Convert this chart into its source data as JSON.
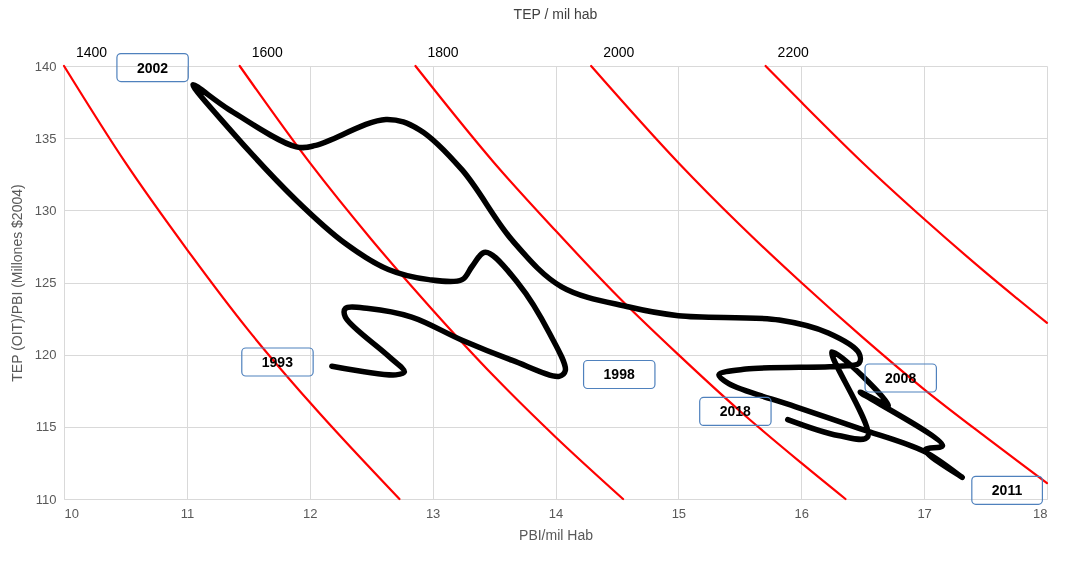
{
  "chart_data": {
    "type": "line",
    "title": "TEP  / mil hab",
    "xlabel": "PBI/mil Hab",
    "ylabel": "TEP (OIT)/PBI (Millones $2004)",
    "xlim": [
      10,
      18
    ],
    "xticks": [
      10,
      11,
      12,
      13,
      14,
      15,
      16,
      17,
      18
    ],
    "ylim": [
      110,
      140
    ],
    "yticks": [
      110,
      115,
      120,
      125,
      130,
      135,
      140
    ],
    "grid": true,
    "legend": false,
    "marker": "none",
    "series": [
      {
        "name": "1400",
        "color": "#ff0000",
        "x": [
          10,
          10.5,
          11,
          11.5,
          12,
          12.73
        ],
        "values": [
          140,
          133.3,
          127.3,
          121.7,
          116.7,
          110
        ]
      },
      {
        "name": "1600",
        "color": "#ff0000",
        "x": [
          11.43,
          12,
          12.5,
          13,
          13.5,
          14,
          14.55
        ],
        "values": [
          140,
          133.3,
          128,
          123.1,
          118.5,
          114.3,
          110
        ]
      },
      {
        "name": "1800",
        "color": "#ff0000",
        "x": [
          12.86,
          13.5,
          14,
          14.5,
          15,
          15.5,
          16,
          16.36
        ],
        "values": [
          140,
          133.3,
          128.6,
          124.1,
          120,
          116.1,
          112.5,
          110
        ]
      },
      {
        "name": "2000",
        "color": "#ff0000",
        "x": [
          14.29,
          15,
          15.5,
          16,
          16.5,
          17,
          17.5,
          18
        ],
        "values": [
          140,
          133.3,
          129,
          125,
          121.2,
          117.6,
          114.3,
          111.1
        ]
      },
      {
        "name": "2200",
        "color": "#ff0000",
        "x": [
          15.71,
          16,
          16.5,
          17,
          17.5,
          18
        ],
        "values": [
          140,
          137.5,
          133.3,
          129.4,
          125.7,
          122.2
        ]
      },
      {
        "color": "#000000",
        "x": [
          12.18,
          12.7,
          12.77,
          12.64,
          12.29,
          12.29,
          12.48,
          12.83,
          13.24,
          13.65,
          14.03,
          14.08,
          13.95,
          13.7,
          13.43,
          13.32,
          13.24,
          12.97,
          12.64,
          12.29,
          11.89,
          11.34,
          11.05,
          11.34,
          11.89,
          12.05,
          12.62,
          12.89,
          13.24,
          13.65,
          14.05,
          14.6,
          15.0,
          15.82,
          16.22,
          16.47,
          16.47,
          16.31,
          15.55,
          15.33,
          15.41,
          15.95,
          16.47,
          17.0,
          17.31,
          17.01,
          17.15,
          16.48,
          16.71,
          16.25,
          16.54,
          16.3,
          15.89
        ],
        "values": [
          119.2,
          118.6,
          118.8,
          119.9,
          122.6,
          123.2,
          123.2,
          122.6,
          121.0,
          119.6,
          118.5,
          118.9,
          121.5,
          124.9,
          127.1,
          126.1,
          125.2,
          125.2,
          125.9,
          127.7,
          130.7,
          135.7,
          138.7,
          137.0,
          134.4,
          134.5,
          136.3,
          135.6,
          132.8,
          127.9,
          124.7,
          123.3,
          122.7,
          122.4,
          121.5,
          120.1,
          119.4,
          119.2,
          119.0,
          118.6,
          118.0,
          116.4,
          114.9,
          113.3,
          111.5,
          113.4,
          113.7,
          117.4,
          116.5,
          120.2,
          114.3,
          114.4,
          115.5
        ]
      }
    ],
    "annotations": [
      {
        "text": "2002",
        "x": 11.05,
        "y": 138.7
      },
      {
        "text": "1993",
        "x": 12.18,
        "y": 119.2
      },
      {
        "text": "1998",
        "x": 14.08,
        "y": 118.9
      },
      {
        "text": "2008",
        "x": 16.47,
        "y": 119.4
      },
      {
        "text": "2018",
        "x": 15.89,
        "y": 115.5
      },
      {
        "text": "2011",
        "x": 17.31,
        "y": 111.5
      }
    ]
  }
}
